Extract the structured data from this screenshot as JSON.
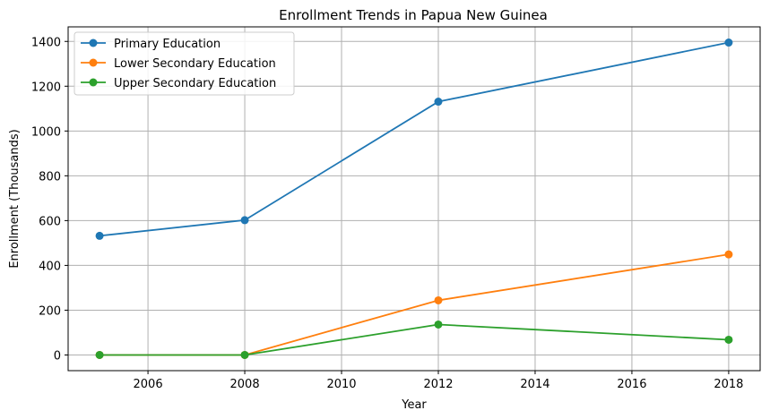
{
  "chart_data": {
    "type": "line",
    "title": "Enrollment Trends in Papua New Guinea",
    "xlabel": "Year",
    "ylabel": "Enrollment (Thousands)",
    "x": [
      2005,
      2008,
      2012,
      2018
    ],
    "xlim": [
      2004.35,
      2018.65
    ],
    "ylim": [
      -70,
      1465
    ],
    "xticks": [
      2006,
      2008,
      2010,
      2012,
      2014,
      2016,
      2018
    ],
    "yticks": [
      0,
      200,
      400,
      600,
      800,
      1000,
      1200,
      1400
    ],
    "grid": true,
    "legend_position": "upper-left",
    "series": [
      {
        "name": "Primary Education",
        "color": "#1f77b4",
        "values": [
          532,
          602,
          1131,
          1395
        ]
      },
      {
        "name": "Lower Secondary Education",
        "color": "#ff7f0e",
        "values": [
          0,
          0,
          244,
          449
        ]
      },
      {
        "name": "Upper Secondary Education",
        "color": "#2ca02c",
        "values": [
          0,
          0,
          136,
          68
        ]
      }
    ]
  }
}
